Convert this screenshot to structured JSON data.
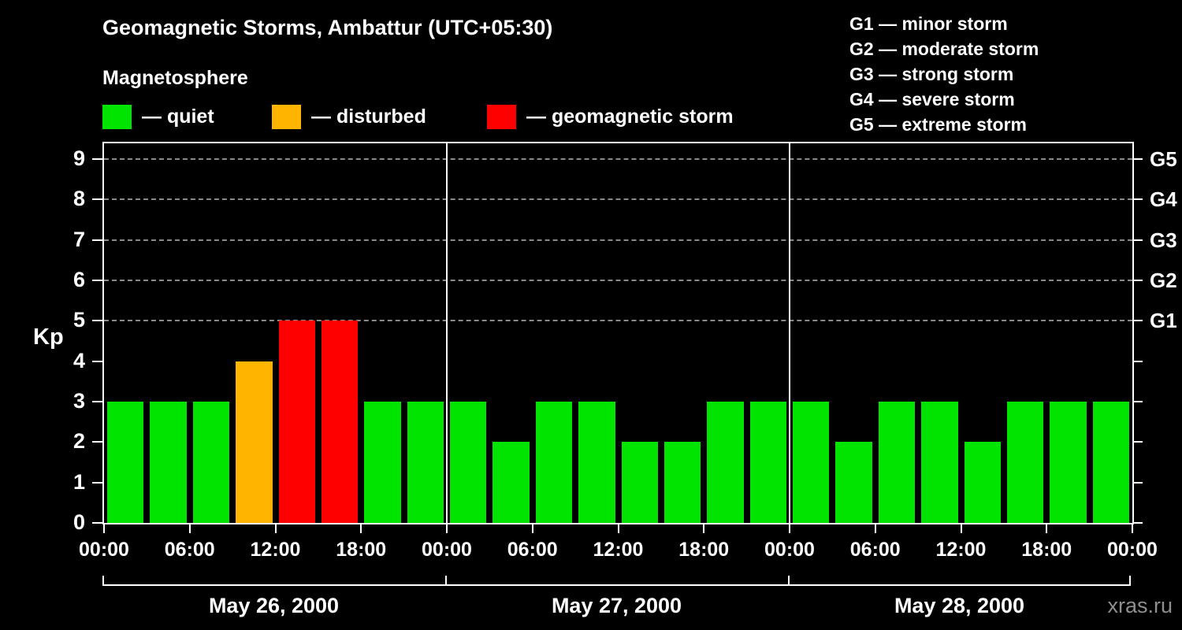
{
  "title": "Geomagnetic Storms, Ambattur (UTC+05:30)",
  "legend": {
    "heading": "Magnetosphere",
    "items": [
      {
        "label": "— quiet",
        "color": "#00e400"
      },
      {
        "label": "— disturbed",
        "color": "#ffb400"
      },
      {
        "label": "— geomagnetic storm",
        "color": "#ff0000"
      }
    ]
  },
  "storm_scale": [
    {
      "label": "G1 — minor storm"
    },
    {
      "label": "G2 — moderate storm"
    },
    {
      "label": "G3 — strong storm"
    },
    {
      "label": "G4 — severe storm"
    },
    {
      "label": "G5 — extreme storm"
    }
  ],
  "watermark": "xras.ru",
  "chart_data": {
    "type": "bar",
    "title": "Geomagnetic Storms, Ambattur (UTC+05:30)",
    "ylabel": "Kp",
    "ylim": [
      0,
      9
    ],
    "yticks": [
      0,
      1,
      2,
      3,
      4,
      5,
      6,
      7,
      8,
      9
    ],
    "gridlines": [
      5,
      6,
      7,
      8,
      9
    ],
    "grid_style": "dashed",
    "right_axis": [
      {
        "label": "G1",
        "value": 5
      },
      {
        "label": "G2",
        "value": 6
      },
      {
        "label": "G3",
        "value": 7
      },
      {
        "label": "G4",
        "value": 8
      },
      {
        "label": "G5",
        "value": 9
      }
    ],
    "x_tick_labels": [
      "00:00",
      "06:00",
      "12:00",
      "18:00",
      "00:00",
      "06:00",
      "12:00",
      "18:00",
      "00:00",
      "06:00",
      "12:00",
      "18:00",
      "00:00"
    ],
    "days": [
      {
        "date": "May 26, 2000",
        "values": [
          3,
          3,
          3,
          4,
          5,
          5,
          3,
          3
        ]
      },
      {
        "date": "May 27, 2000",
        "values": [
          3,
          2,
          3,
          3,
          2,
          2,
          3,
          3
        ]
      },
      {
        "date": "May 28, 2000",
        "values": [
          3,
          2,
          3,
          3,
          2,
          3,
          3,
          3
        ]
      }
    ],
    "bar_interval_hours": 3,
    "color_rules": {
      "quiet_max": 3,
      "disturbed_max": 4,
      "storm_min": 5
    },
    "colors": {
      "quiet": "#00e400",
      "disturbed": "#ffb400",
      "storm": "#ff0000",
      "grid": "#8a8a8a",
      "axis": "#ffffff",
      "background": "#000000"
    }
  }
}
